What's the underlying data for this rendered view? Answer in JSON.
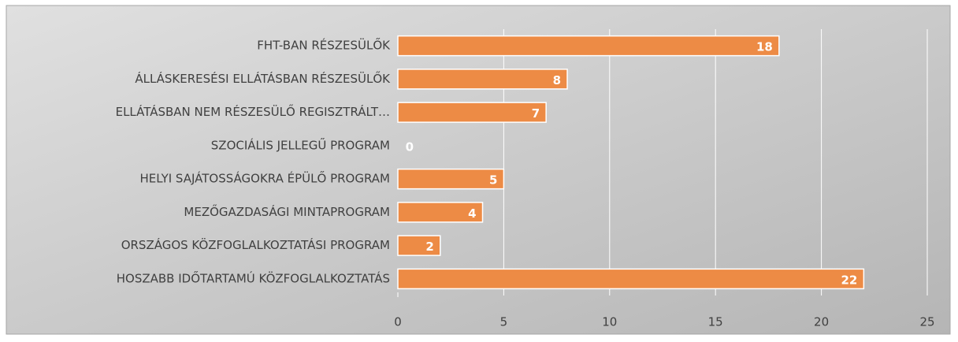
{
  "chart_data": {
    "type": "bar",
    "orientation": "horizontal",
    "categories": [
      "FHT-BAN RÉSZESÜLŐK",
      "ÁLLÁSKERESÉSI ELLÁTÁSBAN RÉSZESÜLŐK",
      "ELLÁTÁSBAN NEM RÉSZESÜLŐ REGISZTRÁLT…",
      "SZOCIÁLIS JELLEGŰ PROGRAM",
      "HELYI SAJÁTOSSÁGOKRA ÉPÜLŐ PROGRAM",
      "MEZŐGAZDASÁGI MINTAPROGRAM",
      "ORSZÁGOS KÖZFOGLALKOZTATÁSI PROGRAM",
      "HOSZABB IDŐTARTAMÚ KÖZFOGLALKOZTATÁS"
    ],
    "values": [
      18,
      8,
      7,
      0,
      5,
      4,
      2,
      22
    ],
    "color": "#ed8b45",
    "xlim": [
      0,
      25
    ],
    "xticks": [
      0,
      5,
      10,
      15,
      20,
      25
    ],
    "grid": true
  }
}
